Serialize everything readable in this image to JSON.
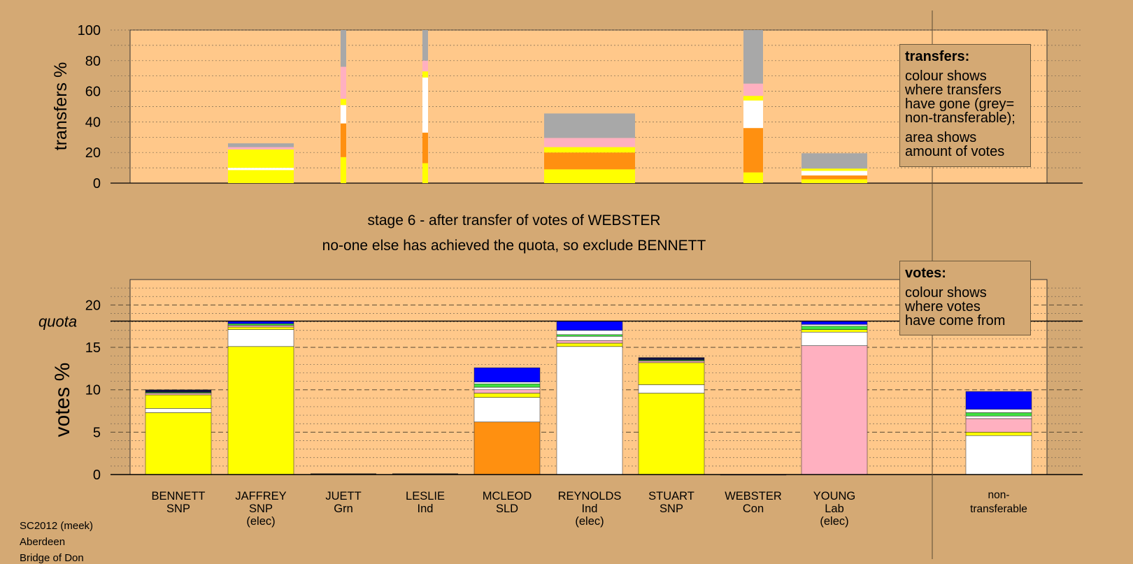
{
  "chart_data": {
    "type": "bar",
    "stacked": true,
    "colors": {
      "SNP": "#ffff00",
      "SLD": "#ff9010",
      "Ind": "#ffffff",
      "Lab": "#ffb0c0",
      "Con": "#0000ff",
      "Grn": "#40e040",
      "nontrans": "#a8a8a8",
      "dark": "#101040",
      "panel": "#ffc88a",
      "background": "#d4a974"
    },
    "candidates": [
      {
        "name": "BENNETT",
        "party": "SNP",
        "elected": ""
      },
      {
        "name": "JAFFREY",
        "party": "SNP",
        "elected": "(elec)"
      },
      {
        "name": "JUETT",
        "party": "Grn",
        "elected": ""
      },
      {
        "name": "LESLIE",
        "party": "Ind",
        "elected": ""
      },
      {
        "name": "MCLEOD",
        "party": "SLD",
        "elected": ""
      },
      {
        "name": "REYNOLDS",
        "party": "Ind",
        "elected": "(elec)"
      },
      {
        "name": "STUART",
        "party": "SNP",
        "elected": ""
      },
      {
        "name": "WEBSTER",
        "party": "Con",
        "elected": ""
      },
      {
        "name": "YOUNG",
        "party": "Lab",
        "elected": "(elec)"
      }
    ],
    "nontransferable_label": [
      "non-",
      "transferable"
    ],
    "transfers": {
      "ylabel": "transfers %",
      "ylim": [
        0,
        100
      ],
      "yticks": [
        0,
        20,
        40,
        60,
        80,
        100
      ],
      "bars": [
        {
          "index": 1,
          "width": "medium",
          "segments": [
            {
              "c": "SNP",
              "v": 8.5
            },
            {
              "c": "Ind",
              "v": 1.5
            },
            {
              "c": "SNP",
              "v": 12
            },
            {
              "c": "Lab",
              "v": 1.5
            },
            {
              "c": "nontrans",
              "v": 2.5
            }
          ]
        },
        {
          "index": 2,
          "width": "thin",
          "segments": [
            {
              "c": "SNP",
              "v": 17
            },
            {
              "c": "SLD",
              "v": 22
            },
            {
              "c": "Ind",
              "v": 12
            },
            {
              "c": "SNP",
              "v": 4
            },
            {
              "c": "Lab",
              "v": 21
            },
            {
              "c": "nontrans",
              "v": 24
            }
          ]
        },
        {
          "index": 3,
          "width": "thin",
          "segments": [
            {
              "c": "SNP",
              "v": 13
            },
            {
              "c": "SLD",
              "v": 20
            },
            {
              "c": "Ind",
              "v": 36
            },
            {
              "c": "SNP",
              "v": 4
            },
            {
              "c": "Lab",
              "v": 7
            },
            {
              "c": "nontrans",
              "v": 20
            }
          ]
        },
        {
          "index": 5,
          "width": "wide",
          "segments": [
            {
              "c": "SNP",
              "v": 9
            },
            {
              "c": "SLD",
              "v": 11
            },
            {
              "c": "SNP",
              "v": 3.5
            },
            {
              "c": "Lab",
              "v": 6
            },
            {
              "c": "nontrans",
              "v": 16
            }
          ]
        },
        {
          "index": 7,
          "width": "narrow",
          "segments": [
            {
              "c": "SNP",
              "v": 7
            },
            {
              "c": "SLD",
              "v": 29
            },
            {
              "c": "Ind",
              "v": 18
            },
            {
              "c": "SNP",
              "v": 3
            },
            {
              "c": "Lab",
              "v": 8
            },
            {
              "c": "nontrans",
              "v": 35
            }
          ]
        },
        {
          "index": 8,
          "width": "medium",
          "segments": [
            {
              "c": "SNP",
              "v": 2.5
            },
            {
              "c": "SLD",
              "v": 2.5
            },
            {
              "c": "Ind",
              "v": 3
            },
            {
              "c": "SNP",
              "v": 1.5
            },
            {
              "c": "nontrans",
              "v": 10
            }
          ]
        }
      ]
    },
    "votes": {
      "ylabel": "votes %",
      "ylim": [
        0,
        23
      ],
      "yticks": [
        0,
        5,
        10,
        15,
        20
      ],
      "quota": 18.1,
      "quota_label": "quota",
      "bars": [
        {
          "index": 0,
          "segments": [
            {
              "c": "SNP",
              "v": 7.3
            },
            {
              "c": "Ind",
              "v": 0.5
            },
            {
              "c": "SNP",
              "v": 1.6
            },
            {
              "c": "Lab",
              "v": 0.2
            },
            {
              "c": "Grn",
              "v": 0.1
            },
            {
              "c": "dark",
              "v": 0.3
            }
          ]
        },
        {
          "index": 1,
          "segments": [
            {
              "c": "SNP",
              "v": 15.1
            },
            {
              "c": "Ind",
              "v": 2
            },
            {
              "c": "SNP",
              "v": 0.3
            },
            {
              "c": "Lab",
              "v": 0.2
            },
            {
              "c": "Grn",
              "v": 0.2
            },
            {
              "c": "Con",
              "v": 0.3
            }
          ]
        },
        {
          "index": 4,
          "segments": [
            {
              "c": "SLD",
              "v": 6.2
            },
            {
              "c": "Ind",
              "v": 2.9
            },
            {
              "c": "SNP",
              "v": 0.5
            },
            {
              "c": "Lab",
              "v": 0.4
            },
            {
              "c": "Ind",
              "v": 0.3
            },
            {
              "c": "Grn",
              "v": 0.4
            },
            {
              "c": "Ind",
              "v": 0.2
            },
            {
              "c": "Con",
              "v": 1.7
            }
          ]
        },
        {
          "index": 5,
          "segments": [
            {
              "c": "Ind",
              "v": 15.1
            },
            {
              "c": "SNP",
              "v": 0.4
            },
            {
              "c": "Lab",
              "v": 0.3
            },
            {
              "c": "Ind",
              "v": 0.5
            },
            {
              "c": "Grn",
              "v": 0.2
            },
            {
              "c": "Ind",
              "v": 0.5
            },
            {
              "c": "Con",
              "v": 1.1
            }
          ]
        },
        {
          "index": 6,
          "segments": [
            {
              "c": "SNP",
              "v": 9.6
            },
            {
              "c": "Ind",
              "v": 1
            },
            {
              "c": "SNP",
              "v": 2.6
            },
            {
              "c": "Lab",
              "v": 0.2
            },
            {
              "c": "Grn",
              "v": 0.1
            },
            {
              "c": "dark",
              "v": 0.3
            }
          ]
        },
        {
          "index": 7,
          "segments": [
            {
              "c": "Con",
              "v": 0.01
            }
          ]
        },
        {
          "index": 8,
          "segments": [
            {
              "c": "Lab",
              "v": 15.2
            },
            {
              "c": "Ind",
              "v": 1.6
            },
            {
              "c": "SNP",
              "v": 0.3
            },
            {
              "c": "Grn",
              "v": 0.4
            },
            {
              "c": "Ind",
              "v": 0.2
            },
            {
              "c": "Con",
              "v": 0.4
            }
          ]
        },
        {
          "index": 10,
          "segments": [
            {
              "c": "Ind",
              "v": 4.6
            },
            {
              "c": "SNP",
              "v": 0.4
            },
            {
              "c": "Lab",
              "v": 1.6
            },
            {
              "c": "Ind",
              "v": 0.3
            },
            {
              "c": "Grn",
              "v": 0.4
            },
            {
              "c": "Ind",
              "v": 0.4
            },
            {
              "c": "Con",
              "v": 2.1
            }
          ]
        }
      ]
    }
  },
  "legends": {
    "transfers": {
      "title": "transfers:",
      "lines_a": [
        "colour shows",
        "where transfers",
        "have gone (grey=",
        "non-transferable);"
      ],
      "lines_b": [
        "area shows",
        "amount of votes"
      ]
    },
    "votes": {
      "title": "votes:",
      "lines": [
        "colour shows",
        "where votes",
        "have come from"
      ]
    }
  },
  "captions": {
    "stage": "stage 6 - after transfer of votes of WEBSTER",
    "action": "no-one else has achieved the quota, so exclude BENNETT"
  },
  "footer": [
    "SC2012 (meek)",
    "Aberdeen",
    "Bridge of Don"
  ]
}
